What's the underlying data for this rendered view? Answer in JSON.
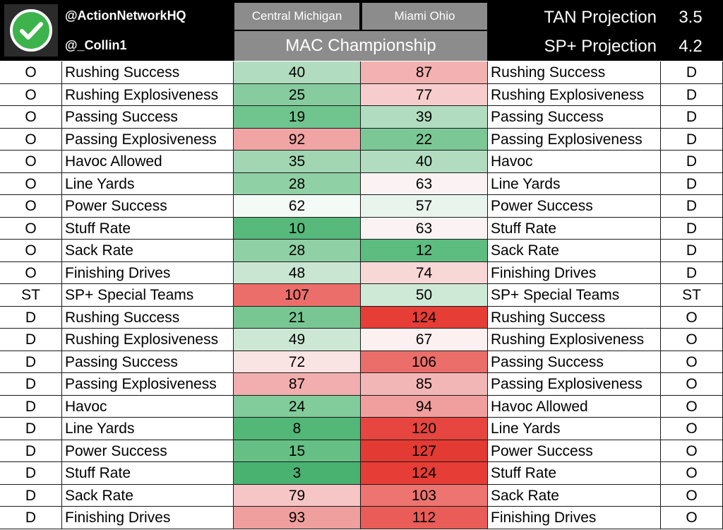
{
  "header": {
    "handle1": "@ActionNetworkHQ",
    "handle2": "@_Collin1",
    "team_left": "Central Michigan",
    "team_right": "Miami Ohio",
    "title": "MAC Championship",
    "tan_label": "TAN Projection",
    "tan_value": "3.5",
    "sp_label": "SP+ Projection",
    "sp_value": "4.2",
    "logo_icon": "checkmark-circle-icon",
    "logo_color": "#3cb44b"
  },
  "rows": [
    {
      "left_side": "O",
      "left_metric": "Rushing Success",
      "cm": "40",
      "mo": "87",
      "right_metric": "Rushing Success",
      "right_side": "D",
      "cm_color": "#b2dcc0",
      "mo_color": "#f3b1b1"
    },
    {
      "left_side": "O",
      "left_metric": "Rushing Explosiveness",
      "cm": "25",
      "mo": "77",
      "right_metric": "Rushing Explosiveness",
      "right_side": "D",
      "cm_color": "#86cc9e",
      "mo_color": "#f7cccc"
    },
    {
      "left_side": "O",
      "left_metric": "Passing Success",
      "cm": "19",
      "mo": "39",
      "right_metric": "Passing Success",
      "right_side": "D",
      "cm_color": "#70c48d",
      "mo_color": "#b2dcc0"
    },
    {
      "left_side": "O",
      "left_metric": "Passing Explosiveness",
      "cm": "92",
      "mo": "22",
      "right_metric": "Passing Explosiveness",
      "right_side": "D",
      "cm_color": "#f0a4a4",
      "mo_color": "#7bc896"
    },
    {
      "left_side": "O",
      "left_metric": "Havoc Allowed",
      "cm": "35",
      "mo": "40",
      "right_metric": "Havoc",
      "right_side": "D",
      "cm_color": "#a2d6b3",
      "mo_color": "#b2dcc0"
    },
    {
      "left_side": "O",
      "left_metric": "Line Yards",
      "cm": "28",
      "mo": "63",
      "right_metric": "Line Yards",
      "right_side": "D",
      "cm_color": "#8fd0a5",
      "mo_color": "#fbf3f3"
    },
    {
      "left_side": "O",
      "left_metric": "Power Success",
      "cm": "62",
      "mo": "57",
      "right_metric": "Power Success",
      "right_side": "D",
      "cm_color": "#f4faf6",
      "mo_color": "#e8f4ec"
    },
    {
      "left_side": "O",
      "left_metric": "Stuff Rate",
      "cm": "10",
      "mo": "63",
      "right_metric": "Stuff Rate",
      "right_side": "D",
      "cm_color": "#57b97b",
      "mo_color": "#fbf3f3"
    },
    {
      "left_side": "O",
      "left_metric": "Sack Rate",
      "cm": "28",
      "mo": "12",
      "right_metric": "Sack Rate",
      "right_side": "D",
      "cm_color": "#8fd0a5",
      "mo_color": "#5dbc80"
    },
    {
      "left_side": "O",
      "left_metric": "Finishing Drives",
      "cm": "48",
      "mo": "74",
      "right_metric": "Finishing Drives",
      "right_side": "D",
      "cm_color": "#c9e6d2",
      "mo_color": "#f8d7d7"
    },
    {
      "left_side": "ST",
      "left_metric": "SP+ Special Teams",
      "cm": "107",
      "mo": "50",
      "right_metric": "SP+ Special Teams",
      "right_side": "ST",
      "cm_color": "#ec6e6a",
      "mo_color": "#cfe9d7"
    },
    {
      "left_side": "D",
      "left_metric": "Rushing Success",
      "cm": "21",
      "mo": "124",
      "right_metric": "Rushing Success",
      "right_side": "O",
      "cm_color": "#78c793",
      "mo_color": "#e63d36"
    },
    {
      "left_side": "D",
      "left_metric": "Rushing Explosiveness",
      "cm": "49",
      "mo": "67",
      "right_metric": "Rushing Explosiveness",
      "right_side": "O",
      "cm_color": "#cce8d5",
      "mo_color": "#fdf0f0"
    },
    {
      "left_side": "D",
      "left_metric": "Passing Success",
      "cm": "72",
      "mo": "106",
      "right_metric": "Passing Success",
      "right_side": "O",
      "cm_color": "#fae3e3",
      "mo_color": "#ec6e6a"
    },
    {
      "left_side": "D",
      "left_metric": "Passing Explosiveness",
      "cm": "87",
      "mo": "85",
      "right_metric": "Passing Explosiveness",
      "right_side": "O",
      "cm_color": "#f2aeae",
      "mo_color": "#f3b6b6"
    },
    {
      "left_side": "D",
      "left_metric": "Havoc",
      "cm": "24",
      "mo": "94",
      "right_metric": "Havoc Allowed",
      "right_side": "O",
      "cm_color": "#82cb9b",
      "mo_color": "#f09f9e"
    },
    {
      "left_side": "D",
      "left_metric": "Line Yards",
      "cm": "8",
      "mo": "120",
      "right_metric": "Line Yards",
      "right_side": "O",
      "cm_color": "#52b777",
      "mo_color": "#e6463f"
    },
    {
      "left_side": "D",
      "left_metric": "Power Success",
      "cm": "15",
      "mo": "127",
      "right_metric": "Power Success",
      "right_side": "O",
      "cm_color": "#66c085",
      "mo_color": "#e33a33"
    },
    {
      "left_side": "D",
      "left_metric": "Stuff Rate",
      "cm": "3",
      "mo": "124",
      "right_metric": "Stuff Rate",
      "right_side": "O",
      "cm_color": "#4ab271",
      "mo_color": "#e63d36"
    },
    {
      "left_side": "D",
      "left_metric": "Sack Rate",
      "cm": "79",
      "mo": "103",
      "right_metric": "Sack Rate",
      "right_side": "O",
      "cm_color": "#f6c6c6",
      "mo_color": "#ed7470"
    },
    {
      "left_side": "D",
      "left_metric": "Finishing Drives",
      "cm": "93",
      "mo": "112",
      "right_metric": "Finishing Drives",
      "right_side": "O",
      "cm_color": "#ef9f9d",
      "mo_color": "#ea5c57"
    }
  ]
}
